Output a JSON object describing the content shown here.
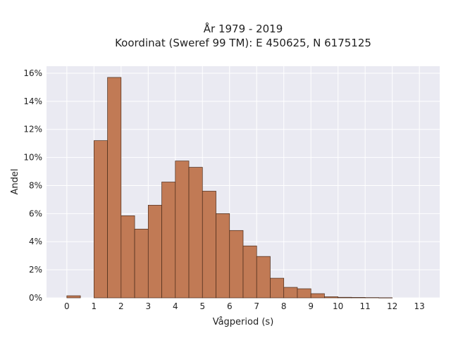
{
  "chart_data": {
    "type": "bar",
    "title_line1": "År 1979 - 2019",
    "title_line2": "Koordinat (Sweref 99 TM): E 450625, N 6175125",
    "xlabel": "Vågperiod (s)",
    "ylabel": "Andel",
    "bin_width": 0.5,
    "xlim": [
      -0.75,
      13.75
    ],
    "ylim": [
      0,
      16.5
    ],
    "x_ticks": [
      0,
      1,
      2,
      3,
      4,
      5,
      6,
      7,
      8,
      9,
      10,
      11,
      12,
      13
    ],
    "x_tick_labels": [
      "0",
      "1",
      "2",
      "3",
      "4",
      "5",
      "6",
      "7",
      "8",
      "9",
      "10",
      "11",
      "12",
      "13"
    ],
    "y_ticks": [
      0,
      2,
      4,
      6,
      8,
      10,
      12,
      14,
      16
    ],
    "y_tick_labels": [
      "0%",
      "2%",
      "4%",
      "6%",
      "8%",
      "10%",
      "12%",
      "14%",
      "16%"
    ],
    "bins": [
      {
        "x": 0.0,
        "value": 0.15
      },
      {
        "x": 1.0,
        "value": 11.2
      },
      {
        "x": 1.5,
        "value": 15.7
      },
      {
        "x": 2.0,
        "value": 5.85
      },
      {
        "x": 2.5,
        "value": 4.9
      },
      {
        "x": 3.0,
        "value": 6.6
      },
      {
        "x": 3.5,
        "value": 8.25
      },
      {
        "x": 4.0,
        "value": 9.75
      },
      {
        "x": 4.5,
        "value": 9.3
      },
      {
        "x": 5.0,
        "value": 7.6
      },
      {
        "x": 5.5,
        "value": 6.0
      },
      {
        "x": 6.0,
        "value": 4.8
      },
      {
        "x": 6.5,
        "value": 3.7
      },
      {
        "x": 7.0,
        "value": 2.95
      },
      {
        "x": 7.5,
        "value": 1.4
      },
      {
        "x": 8.0,
        "value": 0.75
      },
      {
        "x": 8.5,
        "value": 0.65
      },
      {
        "x": 9.0,
        "value": 0.3
      },
      {
        "x": 9.5,
        "value": 0.08
      },
      {
        "x": 10.0,
        "value": 0.04
      },
      {
        "x": 10.5,
        "value": 0.03
      },
      {
        "x": 11.0,
        "value": 0.02
      },
      {
        "x": 11.5,
        "value": 0.01
      }
    ],
    "grid": true,
    "colors": {
      "bar_fill": "#c17a55",
      "bar_stroke": "#4a2b1a",
      "plot_background": "#eaeaf2",
      "grid": "#ffffff"
    }
  }
}
